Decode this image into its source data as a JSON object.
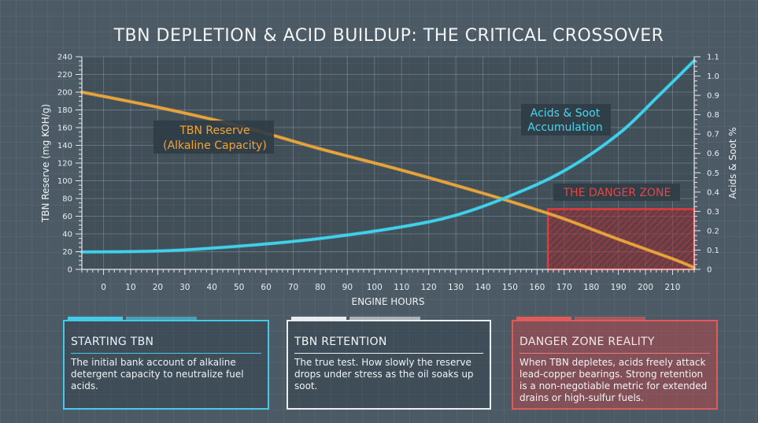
{
  "chart_data": {
    "type": "line",
    "title": "TBN DEPLETION & ACID BUILDUP: THE CRITICAL CROSSOVER",
    "xlabel": "ENGINE HOURS",
    "ylabel_left": "TBN Reserve (mg KOH/g)",
    "ylabel_right": "Acids & Soot %",
    "xlim": [
      -8,
      218
    ],
    "x_ticks": [
      0,
      10,
      20,
      30,
      40,
      50,
      60,
      70,
      80,
      90,
      100,
      110,
      120,
      130,
      140,
      150,
      160,
      170,
      180,
      190,
      200,
      210
    ],
    "ylim_left": [
      0,
      240
    ],
    "y_ticks_left": [
      0,
      20,
      40,
      60,
      80,
      100,
      120,
      140,
      160,
      180,
      200,
      220,
      240
    ],
    "ylim_right": [
      0,
      1.1
    ],
    "y_ticks_right": [
      "0",
      "0.1",
      "0.2",
      "0.3",
      "0.4",
      "0.5",
      "0.6",
      "0.7",
      "0.8",
      "0.9",
      "1.0",
      "1.1"
    ],
    "grid": true,
    "series": [
      {
        "name": "TBN Reserve (Alkaline Capacity)",
        "axis": "left",
        "color": "#e8a43a",
        "points": [
          [
            -8,
            200
          ],
          [
            20,
            183
          ],
          [
            50,
            162
          ],
          [
            80,
            136
          ],
          [
            110,
            112
          ],
          [
            140,
            86
          ],
          [
            155,
            72
          ],
          [
            170,
            57
          ],
          [
            190,
            34
          ],
          [
            210,
            12
          ],
          [
            218,
            2
          ]
        ]
      },
      {
        "name": "Acids & Soot Accumulation",
        "axis": "right",
        "color": "#3fd2ec",
        "points": [
          [
            -8,
            0.09
          ],
          [
            20,
            0.095
          ],
          [
            50,
            0.12
          ],
          [
            80,
            0.16
          ],
          [
            110,
            0.22
          ],
          [
            130,
            0.28
          ],
          [
            150,
            0.38
          ],
          [
            170,
            0.51
          ],
          [
            190,
            0.7
          ],
          [
            205,
            0.9
          ],
          [
            218,
            1.08
          ]
        ]
      }
    ],
    "danger_zone": {
      "label": "THE DANGER ZONE",
      "x_range": [
        164,
        218
      ],
      "y_range_left": [
        0,
        68
      ],
      "color": "#e04a4a"
    },
    "labels": {
      "tbn_line1": "TBN Reserve",
      "tbn_line2": "(Alkaline Capacity)",
      "acid_line1": "Acids & Soot",
      "acid_line2": "Accumulation"
    }
  },
  "cards": [
    {
      "title": "STARTING TBN",
      "body": "The initial bank account of alkaline detergent capacity to neutralize fuel acids."
    },
    {
      "title": "TBN RETENTION",
      "body": "The true test. How slowly the reserve drops under stress as the oil soaks up soot."
    },
    {
      "title": "DANGER ZONE REALITY",
      "body": "When TBN depletes, acids freely attack lead-copper bearings. Strong retention is a non-negotiable metric for extended drains or high-sulfur fuels."
    }
  ]
}
